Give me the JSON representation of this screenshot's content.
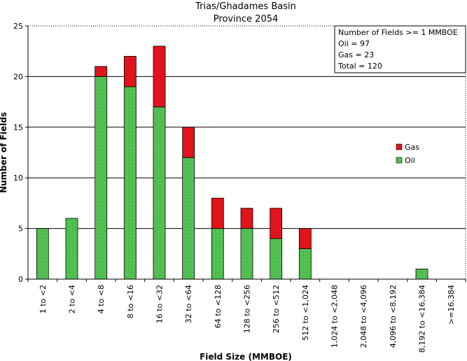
{
  "chart_data": {
    "type": "bar",
    "stacked": true,
    "title": "Trias/Ghadames Basin",
    "subtitle": "Province 2054",
    "xlabel": "Field Size (MMBOE)",
    "ylabel": "Number of Fields",
    "ylim": [
      0,
      25
    ],
    "yticks": [
      0,
      5,
      10,
      15,
      20,
      25
    ],
    "grid": true,
    "legend_position": "right",
    "categories": [
      "1 to <2",
      "2 to <4",
      "4 to <8",
      "8 to <16",
      "16 to <32",
      "32 to <64",
      "64 to <128",
      "128 to <256",
      "256 to <512",
      "512 to <1,024",
      "1,024 to <2,048",
      "2,048 to <4,096",
      "4,096 to <8,192",
      "8,192 to <16,384",
      ">=16,384"
    ],
    "series": [
      {
        "name": "Oil",
        "color": "#3cb43c",
        "values": [
          5,
          6,
          20,
          19,
          17,
          12,
          5,
          5,
          4,
          3,
          0,
          0,
          0,
          1,
          0
        ]
      },
      {
        "name": "Gas",
        "color": "#e0141a",
        "values": [
          0,
          0,
          1,
          3,
          6,
          3,
          3,
          2,
          3,
          2,
          0,
          0,
          0,
          0,
          0
        ]
      }
    ],
    "annotation": [
      "Number of Fields >= 1 MMBOE",
      "Oil = 97",
      "Gas = 23",
      "Total = 120"
    ],
    "legend": [
      "Gas",
      "Oil"
    ]
  }
}
